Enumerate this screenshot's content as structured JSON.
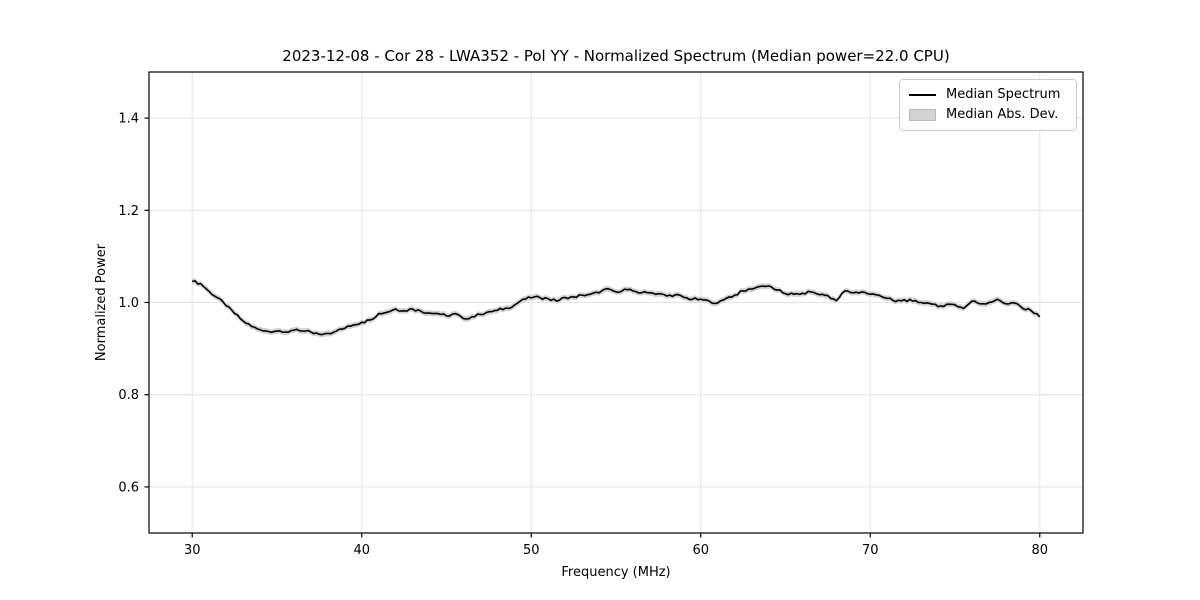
{
  "figure": {
    "title": "2023-12-08 - Cor 28 - LWA352 - Pol YY - Normalized Spectrum (Median power=22.0 CPU)"
  },
  "chart_data": {
    "type": "line",
    "title": "2023-12-08 - Cor 28 - LWA352 - Pol YY - Normalized Spectrum (Median power=22.0 CPU)",
    "xlabel": "Frequency (MHz)",
    "ylabel": "Normalized Power",
    "xlim": [
      27.45,
      82.55
    ],
    "ylim": [
      0.5,
      1.5
    ],
    "xticks": [
      30,
      40,
      50,
      60,
      70,
      80
    ],
    "xtick_labels": [
      "30",
      "40",
      "50",
      "60",
      "70",
      "80"
    ],
    "yticks": [
      0.6,
      0.8,
      1.0,
      1.2,
      1.4
    ],
    "ytick_labels": [
      "0.6",
      "0.8",
      "1.0",
      "1.2",
      "1.4"
    ],
    "grid": true,
    "legend": {
      "position": "upper right",
      "entries": [
        {
          "label": "Median Spectrum",
          "type": "line",
          "color": "#000000"
        },
        {
          "label": "Median Abs. Dev.",
          "type": "patch",
          "color": "#d3d3d3"
        }
      ]
    },
    "colors": {
      "line": "#000000",
      "band": "#d3d3d3",
      "grid": "#e4e4e4",
      "spine": "#000000",
      "text": "#000000"
    },
    "mad_halfwidth": 0.0062,
    "series": [
      {
        "name": "Median Spectrum",
        "x": [
          30.0,
          30.5,
          31.0,
          31.5,
          32.0,
          32.5,
          33.0,
          33.5,
          34.0,
          34.5,
          35.0,
          35.5,
          36.0,
          36.5,
          37.0,
          37.5,
          38.0,
          38.5,
          39.0,
          39.5,
          40.0,
          40.5,
          41.0,
          41.5,
          42.0,
          42.5,
          43.0,
          43.5,
          44.0,
          44.5,
          45.0,
          45.5,
          46.0,
          46.5,
          47.0,
          47.5,
          48.0,
          48.5,
          49.0,
          49.5,
          50.0,
          50.5,
          51.0,
          51.5,
          52.0,
          52.5,
          53.0,
          53.5,
          54.0,
          54.5,
          55.0,
          55.5,
          56.0,
          56.5,
          57.0,
          57.5,
          58.0,
          58.5,
          59.0,
          59.5,
          60.0,
          60.5,
          61.0,
          61.5,
          62.0,
          62.5,
          63.0,
          63.5,
          64.0,
          64.5,
          65.0,
          65.5,
          66.0,
          66.5,
          67.0,
          67.5,
          68.0,
          68.5,
          69.0,
          69.5,
          70.0,
          70.5,
          71.0,
          71.5,
          72.0,
          72.5,
          73.0,
          73.5,
          74.0,
          74.5,
          75.0,
          75.5,
          76.0,
          76.5,
          77.0,
          77.5,
          78.0,
          78.5,
          79.0,
          79.5,
          80.0
        ],
        "y": [
          1.046,
          1.041,
          1.024,
          1.01,
          0.993,
          0.976,
          0.96,
          0.948,
          0.941,
          0.937,
          0.938,
          0.936,
          0.94,
          0.938,
          0.936,
          0.931,
          0.933,
          0.938,
          0.944,
          0.951,
          0.957,
          0.962,
          0.976,
          0.979,
          0.986,
          0.982,
          0.986,
          0.981,
          0.977,
          0.976,
          0.971,
          0.976,
          0.965,
          0.969,
          0.974,
          0.98,
          0.983,
          0.988,
          0.994,
          1.007,
          1.01,
          1.011,
          1.008,
          1.003,
          1.011,
          1.012,
          1.016,
          1.018,
          1.021,
          1.03,
          1.023,
          1.029,
          1.025,
          1.021,
          1.021,
          1.019,
          1.014,
          1.017,
          1.011,
          1.007,
          1.007,
          1.003,
          0.999,
          1.009,
          1.016,
          1.025,
          1.029,
          1.035,
          1.036,
          1.027,
          1.019,
          1.018,
          1.02,
          1.023,
          1.017,
          1.015,
          1.004,
          1.025,
          1.021,
          1.023,
          1.018,
          1.016,
          1.009,
          1.002,
          1.006,
          1.003,
          1.0,
          0.998,
          0.991,
          0.996,
          0.995,
          0.987,
          1.003,
          0.997,
          1.0,
          1.007,
          0.997,
          0.999,
          0.987,
          0.982,
          0.969
        ]
      }
    ]
  }
}
